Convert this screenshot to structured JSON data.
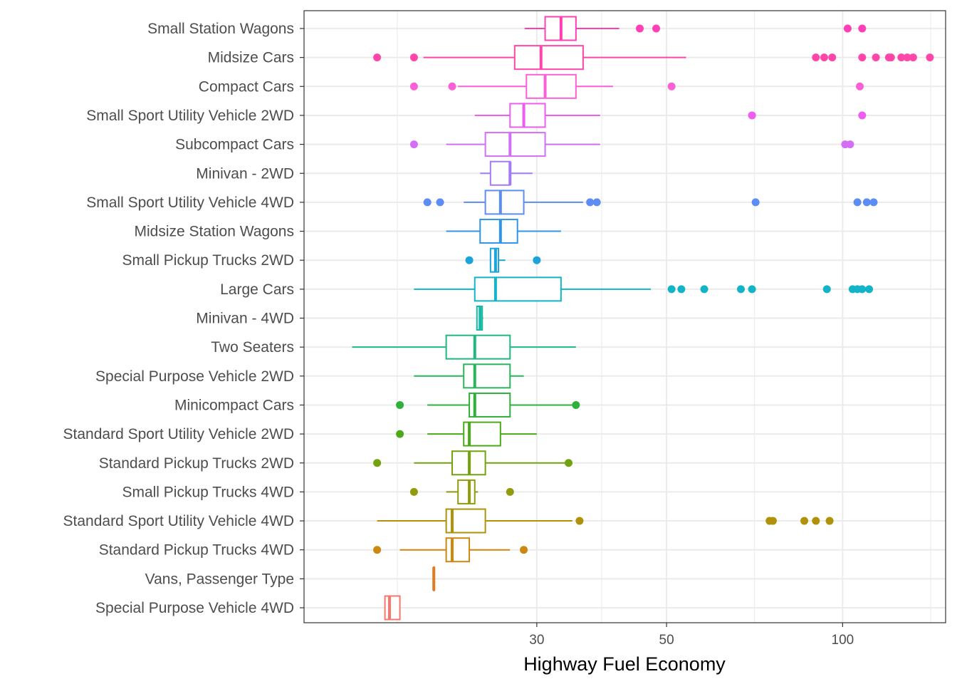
{
  "chart_data": {
    "type": "boxplot",
    "orientation": "horizontal",
    "xlabel": "Highway Fuel Economy",
    "ylabel": "",
    "x_scale": "log10",
    "x_ticks": [
      30,
      50,
      100
    ],
    "x_tick_labels": [
      "30",
      "50",
      "100"
    ],
    "xlim": [
      12.0,
      150.0
    ],
    "grid": true,
    "legend": "none",
    "categories": [
      {
        "name": "Small Station Wagons",
        "color": "#FF40B5",
        "whisker_low": 28.6,
        "q1": 31.0,
        "median": 33.0,
        "q3": 35.0,
        "whisker_high": 41.5,
        "outliers": [
          45,
          48,
          102,
          108
        ]
      },
      {
        "name": "Midsize Cars",
        "color": "#FF47A9",
        "whisker_low": 19.2,
        "q1": 27.5,
        "median": 30.5,
        "q3": 36.0,
        "whisker_high": 54.0,
        "outliers": [
          16.0,
          18.5,
          90,
          93,
          96,
          108,
          114,
          120,
          121,
          126,
          129,
          132,
          141
        ]
      },
      {
        "name": "Compact Cars",
        "color": "#FB61D7",
        "whisker_low": 22.0,
        "q1": 28.8,
        "median": 31.0,
        "q3": 35.0,
        "whisker_high": 40.5,
        "outliers": [
          18.5,
          21.5,
          51,
          107
        ]
      },
      {
        "name": "Small Sport Utility Vehicle 2WD",
        "color": "#EE5CF2",
        "whisker_low": 23.5,
        "q1": 27.0,
        "median": 28.5,
        "q3": 31.0,
        "whisker_high": 38.5,
        "outliers": [
          70,
          108
        ]
      },
      {
        "name": "Subcompact Cars",
        "color": "#D46EF7",
        "whisker_low": 21.0,
        "q1": 24.5,
        "median": 27.0,
        "q3": 31.0,
        "whisker_high": 38.5,
        "outliers": [
          18.5,
          101,
          103
        ]
      },
      {
        "name": "Minivan - 2WD",
        "color": "#A57BF5",
        "whisker_low": 24.0,
        "q1": 25.0,
        "median": 27.0,
        "q3": 27.0,
        "whisker_high": 29.5,
        "outliers": []
      },
      {
        "name": "Small Sport Utility Vehicle 4WD",
        "color": "#5B8DF5",
        "whisker_low": 22.5,
        "q1": 24.5,
        "median": 26.0,
        "q3": 28.5,
        "whisker_high": 36.0,
        "outliers": [
          19.5,
          20.5,
          37,
          38,
          71,
          106,
          110,
          113
        ]
      },
      {
        "name": "Midsize Station Wagons",
        "color": "#2F95E8",
        "whisker_low": 21.0,
        "q1": 24.0,
        "median": 26.0,
        "q3": 27.8,
        "whisker_high": 33.0,
        "outliers": []
      },
      {
        "name": "Small Pickup Trucks 2WD",
        "color": "#1BA4DC",
        "whisker_low": 25.0,
        "q1": 25.0,
        "median": 25.5,
        "q3": 25.8,
        "whisker_high": 26.5,
        "outliers": [
          23.0,
          30.0
        ]
      },
      {
        "name": "Large Cars",
        "color": "#14B4C8",
        "whisker_low": 18.5,
        "q1": 23.5,
        "median": 25.5,
        "q3": 33.0,
        "whisker_high": 47.0,
        "outliers": [
          51,
          53,
          58,
          67,
          70,
          94,
          104,
          106,
          108,
          111
        ]
      },
      {
        "name": "Minivan - 4WD",
        "color": "#17B8A5",
        "whisker_low": 23.7,
        "q1": 23.7,
        "median": 24.0,
        "q3": 24.2,
        "whisker_high": 24.3,
        "outliers": []
      },
      {
        "name": "Two Seaters",
        "color": "#1FB87E",
        "whisker_low": 14.5,
        "q1": 21.0,
        "median": 23.5,
        "q3": 27.0,
        "whisker_high": 35.0,
        "outliers": []
      },
      {
        "name": "Special Purpose Vehicle 2WD",
        "color": "#29B65B",
        "whisker_low": 18.5,
        "q1": 22.5,
        "median": 23.5,
        "q3": 27.0,
        "whisker_high": 28.5,
        "outliers": []
      },
      {
        "name": "Minicompact Cars",
        "color": "#2FB03A",
        "whisker_low": 19.5,
        "q1": 23.0,
        "median": 23.5,
        "q3": 27.0,
        "whisker_high": 34.5,
        "outliers": [
          17.5,
          35.0
        ]
      },
      {
        "name": "Standard Sport Utility Vehicle 2WD",
        "color": "#4CAA1A",
        "whisker_low": 19.5,
        "q1": 22.5,
        "median": 23.0,
        "q3": 26.0,
        "whisker_high": 30.0,
        "outliers": [
          17.5
        ]
      },
      {
        "name": "Standard Pickup Trucks 2WD",
        "color": "#72A30E",
        "whisker_low": 18.5,
        "q1": 21.5,
        "median": 23.0,
        "q3": 24.5,
        "whisker_high": 33.5,
        "outliers": [
          16.0,
          34.0
        ]
      },
      {
        "name": "Small Pickup Trucks 4WD",
        "color": "#929B0C",
        "whisker_low": 21.0,
        "q1": 22.0,
        "median": 23.0,
        "q3": 23.5,
        "whisker_high": 23.8,
        "outliers": [
          18.5,
          27.0
        ]
      },
      {
        "name": "Standard Sport Utility Vehicle 4WD",
        "color": "#B0920A",
        "whisker_low": 16.0,
        "q1": 21.0,
        "median": 21.5,
        "q3": 24.5,
        "whisker_high": 34.5,
        "outliers": [
          35.5,
          75,
          76,
          86,
          90,
          95
        ]
      },
      {
        "name": "Standard Pickup Trucks 4WD",
        "color": "#CC8810",
        "whisker_low": 17.5,
        "q1": 21.0,
        "median": 21.5,
        "q3": 23.0,
        "whisker_high": 27.0,
        "outliers": [
          16.0,
          28.5
        ]
      },
      {
        "name": "Vans, Passenger Type",
        "color": "#E07B1F",
        "whisker_low": 20.0,
        "q1": 20.0,
        "median": 20.0,
        "q3": 20.0,
        "whisker_high": 20.0,
        "outliers": []
      },
      {
        "name": "Special Purpose Vehicle 4WD",
        "color": "#F8766D",
        "whisker_low": 16.5,
        "q1": 16.5,
        "median": 16.8,
        "q3": 17.5,
        "whisker_high": 17.5,
        "outliers": []
      }
    ]
  }
}
